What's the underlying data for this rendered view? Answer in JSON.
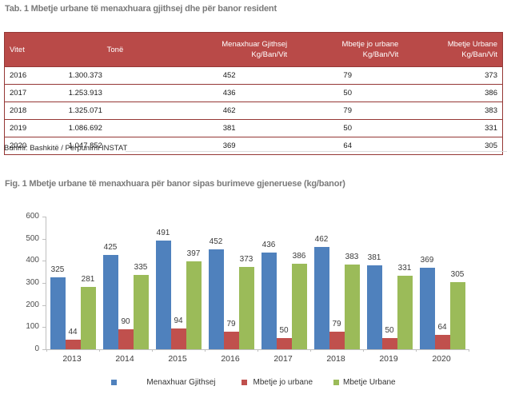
{
  "table": {
    "title": "Tab. 1 Mbetje urbane të menaxhuara gjithsej dhe për banor resident",
    "header_bg": "#b94a48",
    "border_color": "#953735",
    "columns": [
      {
        "line1": "Vitet",
        "line2": ""
      },
      {
        "line1": "Tonë",
        "line2": ""
      },
      {
        "line1": "Menaxhuar Gjithsej",
        "line2": "Kg/Ban/Vit"
      },
      {
        "line1": "Mbetje jo urbane",
        "line2": "Kg/Ban/Vit"
      },
      {
        "line1": "Mbetje Urbane",
        "line2": "Kg/Ban/Vit"
      }
    ],
    "rows": [
      [
        "2016",
        "1.300.373",
        "452",
        "79",
        "373"
      ],
      [
        "2017",
        "1.253.913",
        "436",
        "50",
        "386"
      ],
      [
        "2018",
        "1.325.071",
        "462",
        "79",
        "383"
      ],
      [
        "2019",
        "1.086.692",
        "381",
        "50",
        "331"
      ],
      [
        "2020",
        "1.047.852",
        "369",
        "64",
        "305"
      ]
    ],
    "source": "Burimi: Bashkitë / Përpunimi INSTAT"
  },
  "figure": {
    "title": "Fig. 1 Mbetje urbane të menaxhuara për banor sipas burimeve gjeneruese (kg/banor)"
  },
  "chart_data": {
    "type": "bar",
    "title": "Fig. 1 Mbetje urbane të menaxhuara për banor sipas burimeve gjeneruese (kg/banor)",
    "categories": [
      "2013",
      "2014",
      "2015",
      "2016",
      "2017",
      "2018",
      "2019",
      "2020"
    ],
    "series": [
      {
        "name": "Menaxhuar Gjithsej",
        "color": "#4F81BD",
        "values": [
          325,
          425,
          491,
          452,
          436,
          462,
          381,
          369
        ]
      },
      {
        "name": "Mbetje jo urbane",
        "color": "#C0504D",
        "values": [
          44,
          90,
          94,
          79,
          50,
          79,
          50,
          64
        ]
      },
      {
        "name": "Mbetje Urbane",
        "color": "#9BBB59",
        "values": [
          281,
          335,
          397,
          373,
          386,
          383,
          331,
          305
        ]
      }
    ],
    "xlabel": "",
    "ylabel": "",
    "ylim": [
      0,
      600
    ],
    "ytick_step": 100,
    "grid": false,
    "legend_position": "bottom",
    "data_labels": true
  }
}
